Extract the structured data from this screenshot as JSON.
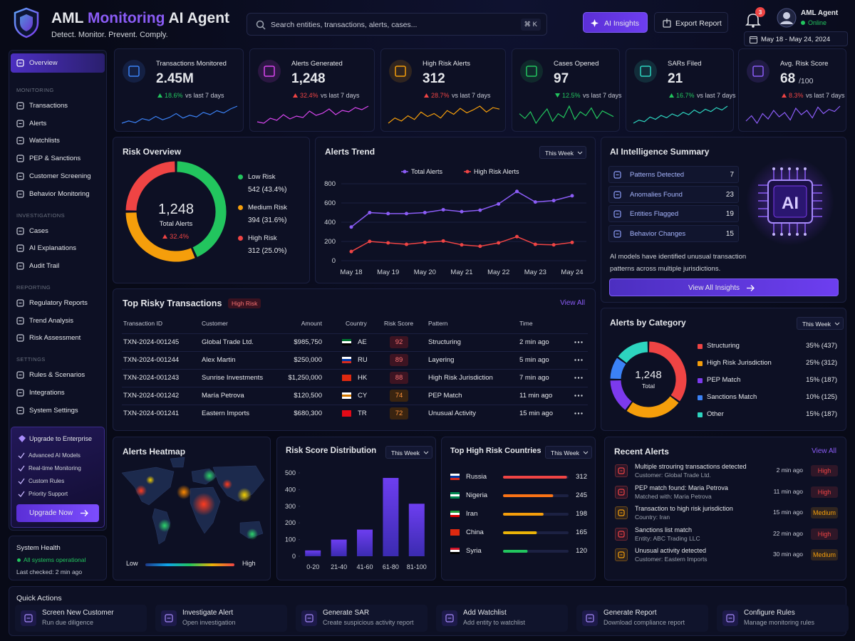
{
  "header": {
    "title_parts": [
      "AML",
      "Monitoring",
      "AI Agent"
    ],
    "tagline": "Detect. Monitor. Prevent. Comply.",
    "search_placeholder": "Search entities, transactions, alerts, cases...",
    "shortcut": "⌘ K",
    "ai_insights": "AI Insights",
    "export_report": "Export Report",
    "notifications": 3,
    "user_name": "AML Agent",
    "user_status": "Online",
    "date_range": "May 18 - May 24, 2024"
  },
  "sidebar": {
    "active": "Overview",
    "sections": [
      {
        "title": "MONITORING",
        "items": [
          "Transactions",
          "Alerts",
          "Watchlists",
          "PEP & Sanctions",
          "Customer Screening",
          "Behavior Monitoring"
        ]
      },
      {
        "title": "INVESTIGATIONS",
        "items": [
          "Cases",
          "AI Explanations",
          "Audit Trail"
        ]
      },
      {
        "title": "REPORTING",
        "items": [
          "Regulatory Reports",
          "Trend Analysis",
          "Risk Assessment"
        ]
      },
      {
        "title": "SETTINGS",
        "items": [
          "Rules & Scenarios",
          "Integrations",
          "System Settings"
        ]
      }
    ],
    "upgrade": {
      "title": "Upgrade to Enterprise",
      "features": [
        "Advanced AI Models",
        "Real-time Monitoring",
        "Custom Rules",
        "Priority Support"
      ],
      "button": "Upgrade Now"
    },
    "system_health": {
      "title": "System Health",
      "status": "All systems operational",
      "last_checked": "Last checked: 2 min ago"
    }
  },
  "kpis": [
    {
      "label": "Transactions Monitored",
      "value": "2.45M",
      "change": "18.6%",
      "direction": "up",
      "trend_color": "#22c55e",
      "compare": "vs last 7 days",
      "color": "#3b82f6",
      "sparkline": [
        30,
        34,
        31,
        38,
        35,
        42,
        36,
        40,
        47,
        39,
        44,
        41,
        49,
        45,
        52,
        48,
        55,
        60
      ]
    },
    {
      "label": "Alerts Generated",
      "value": "1,248",
      "change": "32.4%",
      "direction": "up",
      "trend_color": "#ef4444",
      "compare": "vs last 7 days",
      "color": "#d946ef",
      "sparkline": [
        40,
        38,
        45,
        42,
        50,
        44,
        48,
        46,
        55,
        49,
        52,
        58,
        50,
        56,
        54,
        60,
        57,
        62
      ]
    },
    {
      "label": "High Risk Alerts",
      "value": "312",
      "change": "28.7%",
      "direction": "up",
      "trend_color": "#ef4444",
      "compare": "vs last 7 days",
      "color": "#f59e0b",
      "sparkline": [
        35,
        42,
        38,
        45,
        40,
        50,
        44,
        48,
        42,
        52,
        47,
        55,
        49,
        53,
        58,
        50,
        56,
        54
      ]
    },
    {
      "label": "Cases Opened",
      "value": "97",
      "change": "12.5%",
      "direction": "down",
      "trend_color": "#22c55e",
      "compare": "vs last 7 days",
      "color": "#22c55e",
      "sparkline": [
        50,
        45,
        52,
        40,
        48,
        55,
        42,
        50,
        46,
        58,
        44,
        52,
        48,
        56,
        45,
        53,
        50,
        47
      ]
    },
    {
      "label": "SARs Filed",
      "value": "21",
      "change": "16.7%",
      "direction": "up",
      "trend_color": "#22c55e",
      "compare": "vs last 7 days",
      "color": "#2dd4bf",
      "sparkline": [
        38,
        42,
        40,
        46,
        43,
        48,
        45,
        50,
        47,
        52,
        49,
        55,
        51,
        56,
        53,
        58,
        55,
        60
      ]
    },
    {
      "label": "Avg. Risk Score",
      "value": "68",
      "suffix": "/100",
      "change": "8.3%",
      "direction": "up",
      "trend_color": "#ef4444",
      "compare": "vs last 7 days",
      "color": "#8b5cf6",
      "sparkline": [
        45,
        50,
        43,
        52,
        47,
        55,
        49,
        53,
        46,
        57,
        51,
        55,
        48,
        58,
        52,
        56,
        54,
        59
      ]
    }
  ],
  "risk_overview": {
    "title": "Risk Overview",
    "total": "1,248",
    "total_label": "Total Alerts",
    "change": "32.4%",
    "direction": "up",
    "segments": [
      {
        "name": "Low Risk",
        "value": 542,
        "value_label": "542 (43.4%)",
        "color": "#22c55e"
      },
      {
        "name": "Medium Risk",
        "value": 394,
        "value_label": "394 (31.6%)",
        "color": "#f59e0b"
      },
      {
        "name": "High Risk",
        "value": 312,
        "value_label": "312 (25.0%)",
        "color": "#ef4444"
      }
    ]
  },
  "alerts_trend": {
    "type": "line",
    "title": "Alerts Trend",
    "period": "This Week",
    "categories": [
      "May 18",
      null,
      "May 19",
      null,
      "May 20",
      null,
      "May 21",
      null,
      "May 22",
      null,
      "May 23",
      null,
      "May 24"
    ],
    "series": [
      {
        "name": "Total Alerts",
        "color": "#8b5cf6",
        "values": [
          350,
          500,
          490,
          490,
          500,
          530,
          510,
          525,
          590,
          720,
          610,
          625,
          675
        ]
      },
      {
        "name": "High Risk Alerts",
        "color": "#ef4444",
        "values": [
          95,
          200,
          185,
          170,
          190,
          205,
          165,
          150,
          185,
          250,
          170,
          165,
          190
        ]
      }
    ],
    "ylim": [
      0,
      800
    ],
    "yticks": [
      0,
      200,
      400,
      600,
      800
    ],
    "grid": true
  },
  "ai_summary": {
    "title": "AI Intelligence Summary",
    "items": [
      {
        "label": "Patterns Detected",
        "value": 7
      },
      {
        "label": "Anomalies Found",
        "value": 23
      },
      {
        "label": "Entities Flagged",
        "value": 19
      },
      {
        "label": "Behavior Changes",
        "value": 15
      }
    ],
    "chip_label": "AI",
    "note": "AI models have identified unusual transaction patterns across multiple jurisdictions.",
    "button": "View All Insights"
  },
  "transactions": {
    "title": "Top Risky Transactions",
    "badge": "High Risk",
    "view_all": "View All",
    "columns": [
      "Transaction ID",
      "Customer",
      "Amount",
      "Country",
      "Risk Score",
      "Pattern",
      "Time"
    ],
    "rows": [
      {
        "id": "TXN-2024-001245",
        "customer": "Global Trade Ltd.",
        "amount": "$985,750",
        "country": "AE",
        "flag": [
          "#00732f",
          "#ffffff",
          "#000000"
        ],
        "risk_score": 92,
        "pattern": "Structuring",
        "time": "2 min ago"
      },
      {
        "id": "TXN-2024-001244",
        "customer": "Alex Martin",
        "amount": "$250,000",
        "country": "RU",
        "flag": [
          "#ffffff",
          "#0039a6",
          "#d52b1e"
        ],
        "risk_score": 89,
        "pattern": "Layering",
        "time": "5 min ago"
      },
      {
        "id": "TXN-2024-001243",
        "customer": "Sunrise Investments",
        "amount": "$1,250,000",
        "country": "HK",
        "flag": [
          "#de2910",
          "#de2910",
          "#de2910"
        ],
        "risk_score": 88,
        "pattern": "High Risk Jurisdiction",
        "time": "7 min ago"
      },
      {
        "id": "TXN-2024-001242",
        "customer": "María Petrova",
        "amount": "$120,500",
        "country": "CY",
        "flag": [
          "#ffffff",
          "#d57800",
          "#ffffff"
        ],
        "risk_score": 74,
        "pattern": "PEP Match",
        "time": "11 min ago"
      },
      {
        "id": "TXN-2024-001241",
        "customer": "Eastern Imports",
        "amount": "$680,300",
        "country": "TR",
        "flag": [
          "#e30a17",
          "#e30a17",
          "#e30a17"
        ],
        "risk_score": 72,
        "pattern": "Unusual Activity",
        "time": "15 min ago"
      }
    ]
  },
  "alerts_by_category": {
    "title": "Alerts by Category",
    "period": "This Week",
    "total": "1,248",
    "total_label": "Total",
    "items": [
      {
        "name": "Structuring",
        "value": 437,
        "value_label": "35% (437)",
        "color": "#ef4444"
      },
      {
        "name": "High Risk Jurisdiction",
        "value": 312,
        "value_label": "25% (312)",
        "color": "#f59e0b"
      },
      {
        "name": "PEP Match",
        "value": 187,
        "value_label": "15% (187)",
        "color": "#7c3aed"
      },
      {
        "name": "Sanctions Match",
        "value": 125,
        "value_label": "10% (125)",
        "color": "#3b82f6"
      },
      {
        "name": "Other",
        "value": 187,
        "value_label": "15% (187)",
        "color": "#2dd4bf"
      }
    ]
  },
  "heatmap": {
    "title": "Alerts Heatmap",
    "legend_low": "Low",
    "legend_high": "High"
  },
  "risk_distribution": {
    "type": "bar",
    "title": "Risk Score Distribution",
    "period": "This Week",
    "categories": [
      "0-20",
      "21-40",
      "41-60",
      "61-80",
      "81-100"
    ],
    "values": [
      35,
      100,
      160,
      470,
      315
    ],
    "color": "#6d3ef0",
    "ylim": [
      0,
      500
    ],
    "yticks": [
      0,
      100,
      200,
      300,
      400,
      500
    ]
  },
  "countries": {
    "title": "Top High Risk Countries",
    "period": "This Week",
    "xlim": [
      0,
      320
    ],
    "items": [
      {
        "name": "Russia",
        "value": 312,
        "color": "#ef4444",
        "flag": [
          "#ffffff",
          "#0039a6",
          "#d52b1e"
        ]
      },
      {
        "name": "Nigeria",
        "value": 245,
        "color": "#f97316",
        "flag": [
          "#008751",
          "#ffffff",
          "#008751"
        ]
      },
      {
        "name": "Iran",
        "value": 198,
        "color": "#f59e0b",
        "flag": [
          "#239f40",
          "#ffffff",
          "#da0000"
        ]
      },
      {
        "name": "China",
        "value": 165,
        "color": "#eab308",
        "flag": [
          "#de2910",
          "#de2910",
          "#de2910"
        ]
      },
      {
        "name": "Syria",
        "value": 120,
        "color": "#22c55e",
        "flag": [
          "#ce1126",
          "#ffffff",
          "#000000"
        ]
      }
    ]
  },
  "recent_alerts": {
    "title": "Recent Alerts",
    "view_all": "View All",
    "items": [
      {
        "title": "Multiple strouring transactions detected",
        "detail": "Customer: Global Trade Ltd.",
        "time": "2 min ago",
        "severity": "High",
        "severity_color": "#ef4444"
      },
      {
        "title": "PEP match found: Maria Petrova",
        "detail": "Matched with: Maria Petrova",
        "time": "11 min ago",
        "severity": "High",
        "severity_color": "#ef4444"
      },
      {
        "title": "Transaction to high risk jurisdiction",
        "detail": "Country: Iran",
        "time": "15 min ago",
        "severity": "Medium",
        "severity_color": "#f59e0b"
      },
      {
        "title": "Sanctions list match",
        "detail": "Entity: ABC Trading LLC",
        "time": "22 min ago",
        "severity": "High",
        "severity_color": "#ef4444"
      },
      {
        "title": "Unusual activity detected",
        "detail": "Customer: Eastern Imports",
        "time": "30 min ago",
        "severity": "Medium",
        "severity_color": "#f59e0b"
      }
    ]
  },
  "quick_actions": {
    "title": "Quick Actions",
    "items": [
      {
        "title": "Screen New Customer",
        "subtitle": "Run due diligence"
      },
      {
        "title": "Investigate Alert",
        "subtitle": "Open investigation"
      },
      {
        "title": "Generate SAR",
        "subtitle": "Create suspicious activity report"
      },
      {
        "title": "Add Watchlist",
        "subtitle": "Add entity to watchlist"
      },
      {
        "title": "Generate Report",
        "subtitle": "Download compliance report"
      },
      {
        "title": "Configure Rules",
        "subtitle": "Manage monitoring rules"
      }
    ]
  }
}
